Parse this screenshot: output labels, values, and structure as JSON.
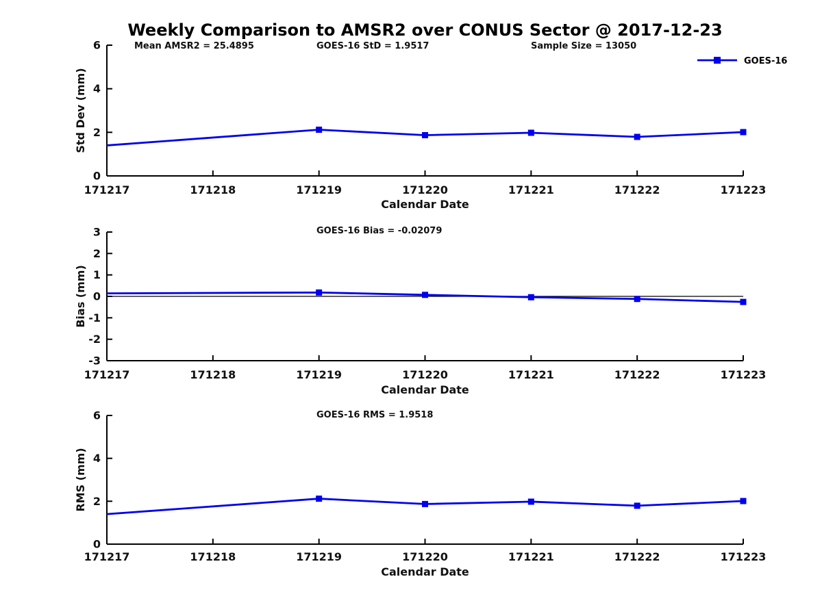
{
  "title": "Weekly Comparison to AMSR2 over CONUS Sector @ 2017-12-23",
  "colors": {
    "line": "#0000ee",
    "axis": "#000000",
    "text": "#111111"
  },
  "legend": {
    "label": "GOES-16",
    "position": "top-right"
  },
  "chart_data": [
    {
      "type": "line",
      "name": "std-dev-panel",
      "annotations": [
        "Mean AMSR2 = 25.4895",
        "GOES-16 StD = 1.9517",
        "Sample Size = 13050"
      ],
      "ylabel": "Std Dev (mm)",
      "xlabel": "Calendar Date",
      "ylim": [
        0,
        6
      ],
      "yticks": [
        0,
        2,
        4,
        6
      ],
      "x_categories": [
        "171217",
        "171218",
        "171219",
        "171220",
        "171221",
        "171222",
        "171223"
      ],
      "grid": false,
      "zero_line": false,
      "series": [
        {
          "name": "GOES-16",
          "x": [
            "171217",
            "171219",
            "171220",
            "171221",
            "171222",
            "171223"
          ],
          "y": [
            1.4,
            2.12,
            1.87,
            1.98,
            1.79,
            2.01
          ],
          "markers": [
            false,
            true,
            true,
            true,
            true,
            true
          ]
        }
      ]
    },
    {
      "type": "line",
      "name": "bias-panel",
      "annotations": [
        "GOES-16 Bias  = -0.02079"
      ],
      "ylabel": "Bias (mm)",
      "xlabel": "Calendar Date",
      "ylim": [
        -3,
        3
      ],
      "yticks": [
        -3,
        -2,
        -1,
        0,
        1,
        2,
        3
      ],
      "x_categories": [
        "171217",
        "171218",
        "171219",
        "171220",
        "171221",
        "171222",
        "171223"
      ],
      "grid": false,
      "zero_line": true,
      "series": [
        {
          "name": "GOES-16",
          "x": [
            "171217",
            "171219",
            "171220",
            "171221",
            "171222",
            "171223"
          ],
          "y": [
            0.14,
            0.18,
            0.07,
            -0.04,
            -0.12,
            -0.26
          ],
          "markers": [
            false,
            true,
            true,
            true,
            true,
            true
          ]
        }
      ]
    },
    {
      "type": "line",
      "name": "rms-panel",
      "annotations": [
        "GOES-16 RMS = 1.9518"
      ],
      "ylabel": "RMS (mm)",
      "xlabel": "Calendar Date",
      "ylim": [
        0,
        6
      ],
      "yticks": [
        0,
        2,
        4,
        6
      ],
      "x_categories": [
        "171217",
        "171218",
        "171219",
        "171220",
        "171221",
        "171222",
        "171223"
      ],
      "grid": false,
      "zero_line": false,
      "series": [
        {
          "name": "GOES-16",
          "x": [
            "171217",
            "171219",
            "171220",
            "171221",
            "171222",
            "171223"
          ],
          "y": [
            1.4,
            2.12,
            1.87,
            1.98,
            1.79,
            2.01
          ],
          "markers": [
            false,
            true,
            true,
            true,
            true,
            true
          ]
        }
      ]
    }
  ]
}
